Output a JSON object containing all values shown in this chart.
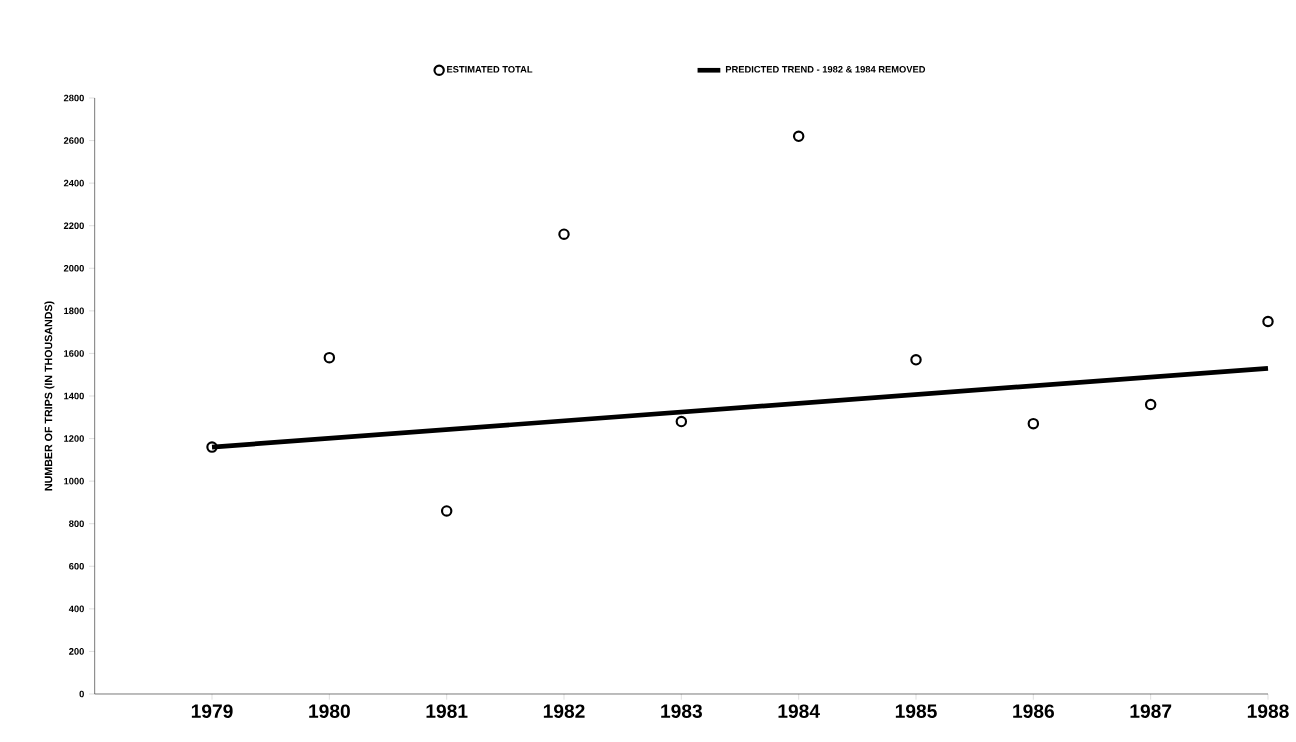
{
  "chart_data": {
    "type": "scatter",
    "ylabel": "NUMBER OF TRIPS (IN THOUSANDS)",
    "x": [
      1979,
      1980,
      1981,
      1982,
      1983,
      1984,
      1985,
      1986,
      1987,
      1988
    ],
    "series": [
      {
        "name": "ESTIMATED TOTAL",
        "color": "#000000",
        "marker": "circle",
        "values": [
          1160,
          1580,
          860,
          2160,
          1280,
          2620,
          1570,
          1270,
          1360,
          1750
        ]
      },
      {
        "name": "PREDICTED TREND - 1982 & 1984 REMOVED",
        "type": "line",
        "color": "#000000",
        "x": [
          1979,
          1988
        ],
        "values": [
          1160,
          1530
        ],
        "line_style": "solid"
      }
    ],
    "xlim": [
      1978,
      1988
    ],
    "xticks": [
      1979,
      1980,
      1981,
      1982,
      1983,
      1984,
      1985,
      1986,
      1987,
      1988
    ],
    "ylim": [
      0,
      2800
    ],
    "yticks": [
      0,
      200,
      400,
      600,
      800,
      1000,
      1200,
      1400,
      1600,
      1800,
      2000,
      2200,
      2400,
      2600,
      2800
    ],
    "legend": "top",
    "grid": false
  }
}
